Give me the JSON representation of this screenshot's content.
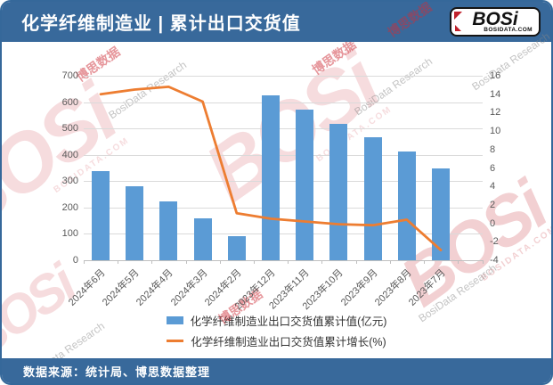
{
  "header": {
    "title": "化学纤维制造业 | 累计出口交货值",
    "logo": {
      "brand": "BOSi",
      "domain": "BOSIDATA.COM"
    }
  },
  "footer": {
    "source": "数据来源：统计局、博思数据整理"
  },
  "watermark": {
    "brand": "BOSi",
    "domain": "BOSIDATA.COM",
    "cn": "博思数据",
    "en": "BosiData Research"
  },
  "chart_data": {
    "type": "combo-bar-line",
    "categories": [
      "2024年6月",
      "2024年5月",
      "2024年4月",
      "2024年3月",
      "2024年2月",
      "2023年12月",
      "2023年11月",
      "2023年10月",
      "2023年9月",
      "2023年8月",
      "2023年7月"
    ],
    "series": [
      {
        "name": "化学纤维制造业出口交货值累计值(亿元)",
        "type": "bar",
        "y_axis": "left",
        "color": "#5b9bd5",
        "values": [
          340,
          280,
          222,
          160,
          90,
          626,
          573,
          518,
          468,
          414,
          350
        ]
      },
      {
        "name": "化学纤维制造业出口交货值累计增长(%)",
        "type": "line",
        "y_axis": "right",
        "color": "#ed7d31",
        "values": [
          14.0,
          14.5,
          14.8,
          13.2,
          1.1,
          0.5,
          0.2,
          -0.1,
          -0.2,
          0.4,
          -2.9
        ]
      }
    ],
    "left_axis": {
      "min": 0,
      "max": 700,
      "step": 100,
      "ticks": [
        0,
        100,
        200,
        300,
        400,
        500,
        600,
        700
      ]
    },
    "right_axis": {
      "min": -4,
      "max": 16,
      "step": 2,
      "ticks": [
        -4,
        -2,
        0,
        2,
        4,
        6,
        8,
        10,
        12,
        14,
        16
      ]
    },
    "grid": true,
    "legend_position": "bottom",
    "x_label_rotation": -45
  }
}
